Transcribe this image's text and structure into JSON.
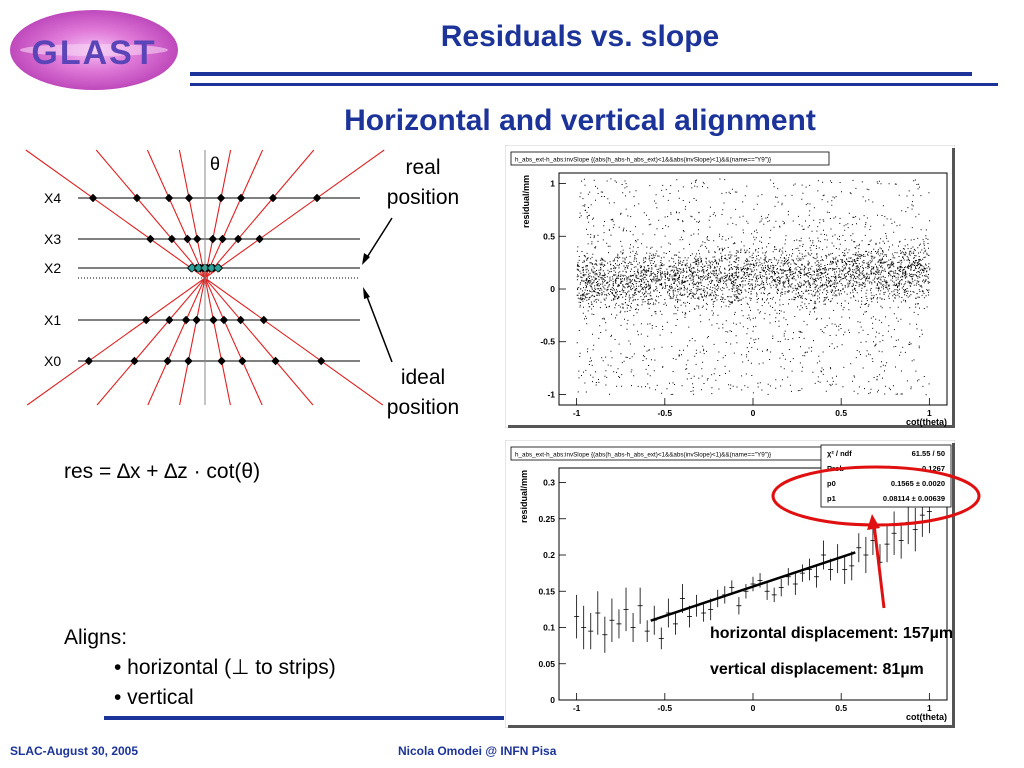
{
  "logo": {
    "text": "GLAST"
  },
  "header": {
    "title": "Residuals vs. slope",
    "subtitle": "Horizontal and vertical alignment"
  },
  "diagram": {
    "theta_label": "θ",
    "real_label": [
      "real",
      "position"
    ],
    "ideal_label": [
      "ideal",
      "position"
    ],
    "layers": [
      {
        "label": "X4",
        "points": 6
      },
      {
        "label": "X3",
        "points": 6
      },
      {
        "label": "X2",
        "points": 6
      },
      {
        "label": "X1",
        "points": 6
      },
      {
        "label": "X0",
        "points": 6
      }
    ]
  },
  "formula": "res = ∆x + ∆z · cot(θ)",
  "aligns": {
    "heading": "Aligns:",
    "items": [
      "• horizontal (⊥ to strips)",
      "• vertical"
    ]
  },
  "notes": {
    "horizontal": "horizontal displacement: 157µm",
    "vertical": "vertical displacement: 81µm"
  },
  "footer": {
    "left": "SLAC-August 30, 2005",
    "center": "Nicola Omodei @ INFN Pisa"
  },
  "colors": {
    "accent": "#1c3399",
    "highlight": "#e01010"
  },
  "chart_data": [
    {
      "type": "scatter",
      "title": "h_abs_ext-h_abs:invSlope {(abs(h_abs-h_abs_ext)<1&&abs(invSlope)<1)&&(name==\"Y9\")}",
      "xlabel": "cot(theta)",
      "ylabel": "residual/mm",
      "xlim": [
        -1.1,
        1.1
      ],
      "ylim": [
        -1.1,
        1.1
      ],
      "xticks": [
        "-1",
        "-0.5",
        "0",
        "0.5",
        "1"
      ],
      "yticks": [
        "-1",
        "-0.5",
        "0",
        "0.5",
        "1"
      ],
      "xrange": [
        -1,
        1
      ],
      "core_center": 0.12,
      "core_halfwidth": 0.25
    },
    {
      "type": "line",
      "title": "h_abs_ext-h_abs:invSlope {(abs(h_abs-h_abs_ext)<1&&abs(invSlope)<1)&&(name==\"Y9\")}",
      "xlabel": "cot(theta)",
      "ylabel": "residual/mm",
      "xlim": [
        -1.1,
        1.1
      ],
      "ylim": [
        0,
        0.32
      ],
      "xticks": [
        "-1",
        "-0.5",
        "0",
        "0.5",
        "1"
      ],
      "yticks": [
        "0",
        "0.05",
        "0.1",
        "0.15",
        "0.2",
        "0.25",
        "0.3"
      ],
      "stats": [
        {
          "label": "χ² / ndf",
          "value": "61.55 / 50"
        },
        {
          "label": "Prob",
          "value": "0.1267"
        },
        {
          "label": "p0",
          "value": "0.1565 ± 0.0020"
        },
        {
          "label": "p1",
          "value": "0.08114 ± 0.00639"
        }
      ],
      "fit": {
        "p0": 0.1565,
        "p1": 0.08114,
        "x_range": [
          -0.58,
          0.58
        ]
      },
      "profile_x": [
        -1.0,
        -0.96,
        -0.92,
        -0.88,
        -0.84,
        -0.8,
        -0.76,
        -0.72,
        -0.68,
        -0.64,
        -0.6,
        -0.56,
        -0.52,
        -0.48,
        -0.44,
        -0.4,
        -0.36,
        -0.32,
        -0.28,
        -0.24,
        -0.2,
        -0.16,
        -0.12,
        -0.08,
        -0.04,
        0.0,
        0.04,
        0.08,
        0.12,
        0.16,
        0.2,
        0.24,
        0.28,
        0.32,
        0.36,
        0.4,
        0.44,
        0.48,
        0.52,
        0.56,
        0.6,
        0.64,
        0.68,
        0.72,
        0.76,
        0.8,
        0.84,
        0.88,
        0.92,
        0.96,
        1.0
      ],
      "profile_y": [
        0.115,
        0.1,
        0.095,
        0.12,
        0.09,
        0.11,
        0.105,
        0.125,
        0.1,
        0.13,
        0.095,
        0.11,
        0.085,
        0.12,
        0.105,
        0.14,
        0.115,
        0.13,
        0.12,
        0.125,
        0.14,
        0.145,
        0.155,
        0.13,
        0.15,
        0.16,
        0.165,
        0.15,
        0.145,
        0.155,
        0.17,
        0.16,
        0.175,
        0.18,
        0.17,
        0.2,
        0.18,
        0.195,
        0.18,
        0.185,
        0.21,
        0.2,
        0.22,
        0.19,
        0.215,
        0.23,
        0.22,
        0.245,
        0.235,
        0.255,
        0.26
      ],
      "profile_err": [
        0.03,
        0.03,
        0.025,
        0.03,
        0.025,
        0.03,
        0.02,
        0.03,
        0.02,
        0.025,
        0.015,
        0.02,
        0.015,
        0.02,
        0.015,
        0.02,
        0.015,
        0.015,
        0.012,
        0.015,
        0.012,
        0.012,
        0.01,
        0.012,
        0.01,
        0.01,
        0.01,
        0.012,
        0.01,
        0.012,
        0.012,
        0.015,
        0.012,
        0.015,
        0.015,
        0.02,
        0.015,
        0.02,
        0.02,
        0.02,
        0.02,
        0.025,
        0.02,
        0.025,
        0.025,
        0.03,
        0.025,
        0.03,
        0.03,
        0.03,
        0.03
      ]
    }
  ]
}
